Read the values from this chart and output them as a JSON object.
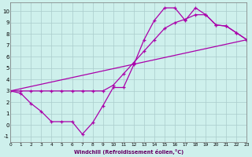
{
  "xlabel": "Windchill (Refroidissement éolien,°C)",
  "bg_color": "#cef0ec",
  "grid_color": "#aacccc",
  "line_color": "#aa00aa",
  "xlim": [
    0,
    23
  ],
  "ylim": [
    -1.5,
    10.8
  ],
  "xticks": [
    0,
    1,
    2,
    3,
    4,
    5,
    6,
    7,
    8,
    9,
    10,
    11,
    12,
    13,
    14,
    15,
    16,
    17,
    18,
    19,
    20,
    21,
    22,
    23
  ],
  "yticks": [
    -1,
    0,
    1,
    2,
    3,
    4,
    5,
    6,
    7,
    8,
    9,
    10
  ],
  "line1_x": [
    0,
    1,
    2,
    3,
    4,
    5,
    6,
    7,
    8,
    9,
    10,
    11,
    12,
    13,
    14,
    15,
    16,
    17,
    18,
    19,
    20,
    21,
    22,
    23
  ],
  "line1_y": [
    3.0,
    2.8,
    1.9,
    1.2,
    0.3,
    0.3,
    0.3,
    -0.8,
    0.2,
    1.7,
    3.3,
    3.3,
    5.3,
    7.5,
    9.2,
    10.3,
    10.3,
    9.2,
    10.3,
    9.7,
    8.8,
    8.7,
    8.1,
    7.5
  ],
  "line2_x": [
    0,
    1,
    2,
    3,
    4,
    5,
    6,
    7,
    8,
    9,
    10,
    11,
    12,
    13,
    14,
    15,
    16,
    17,
    18,
    19,
    20,
    21,
    22,
    23
  ],
  "line2_y": [
    3.0,
    3.0,
    3.0,
    3.0,
    3.0,
    3.0,
    3.0,
    3.0,
    3.0,
    3.0,
    3.5,
    4.5,
    5.5,
    6.5,
    7.5,
    8.5,
    9.0,
    9.3,
    9.7,
    9.7,
    8.8,
    8.7,
    8.1,
    7.5
  ],
  "line3_x": [
    0,
    23
  ],
  "line3_y": [
    3.0,
    7.5
  ]
}
